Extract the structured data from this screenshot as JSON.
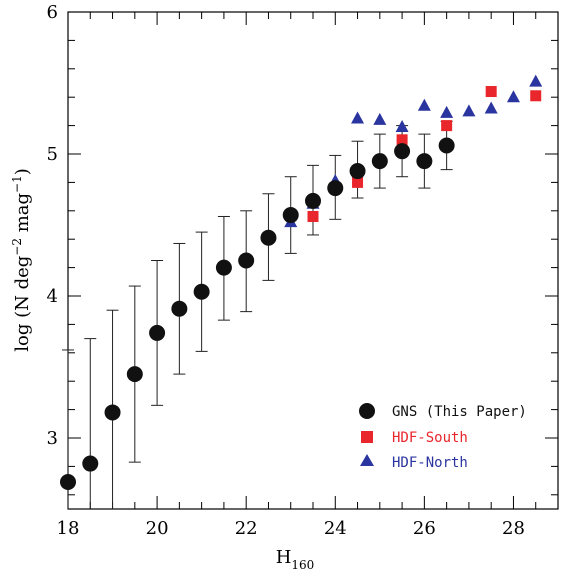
{
  "chart_data": {
    "type": "scatter",
    "xlabel": "H",
    "xlabel_sub": "160",
    "ylabel_parts": [
      "log (N deg",
      "−2",
      " mag",
      "−1",
      ")"
    ],
    "xlim": [
      18,
      29
    ],
    "ylim": [
      2.5,
      6
    ],
    "x_ticks": [
      18,
      20,
      22,
      24,
      26,
      28
    ],
    "y_ticks": [
      3,
      4,
      5,
      6
    ],
    "grid": false,
    "legend_position": "bottom-right",
    "colors": {
      "gns": "#111111",
      "south": "#e8262b",
      "north": "#2b35a0",
      "axis": "#000000"
    },
    "series": [
      {
        "key": "gns",
        "name": "GNS (This Paper)",
        "marker": "circle",
        "x": [
          18.0,
          18.5,
          19.0,
          19.5,
          20.0,
          20.5,
          21.0,
          21.5,
          22.0,
          22.5,
          23.0,
          23.5,
          24.0,
          24.5,
          25.0,
          25.5,
          26.0,
          26.5
        ],
        "y": [
          2.69,
          2.82,
          3.18,
          3.45,
          3.74,
          3.91,
          4.03,
          4.2,
          4.25,
          4.41,
          4.57,
          4.67,
          4.76,
          4.88,
          4.95,
          5.02,
          4.95,
          5.06
        ],
        "y_upper": [
          3.62,
          3.7,
          3.9,
          4.07,
          4.25,
          4.37,
          4.45,
          4.56,
          4.6,
          4.72,
          4.84,
          4.92,
          4.99,
          5.09,
          5.14,
          5.2,
          5.14,
          5.23
        ],
        "y_lower": [
          2.5,
          2.5,
          2.5,
          2.83,
          3.23,
          3.45,
          3.61,
          3.83,
          3.89,
          4.11,
          4.3,
          4.43,
          4.54,
          4.69,
          4.76,
          4.84,
          4.76,
          4.89
        ]
      },
      {
        "key": "south",
        "name": "HDF-South",
        "marker": "square",
        "x": [
          23.5,
          24.5,
          25.5,
          26.5,
          27.5,
          28.5
        ],
        "y": [
          4.56,
          4.8,
          5.1,
          5.2,
          5.44,
          5.41
        ]
      },
      {
        "key": "north",
        "name": "HDF-North",
        "marker": "triangle",
        "x": [
          23.0,
          23.5,
          24.0,
          24.5,
          25.0,
          25.5,
          26.0,
          26.5,
          27.0,
          27.5,
          28.0,
          28.5
        ],
        "y": [
          4.52,
          4.65,
          4.81,
          5.25,
          5.24,
          5.19,
          5.34,
          5.29,
          5.3,
          5.32,
          5.4,
          5.51
        ]
      }
    ]
  }
}
